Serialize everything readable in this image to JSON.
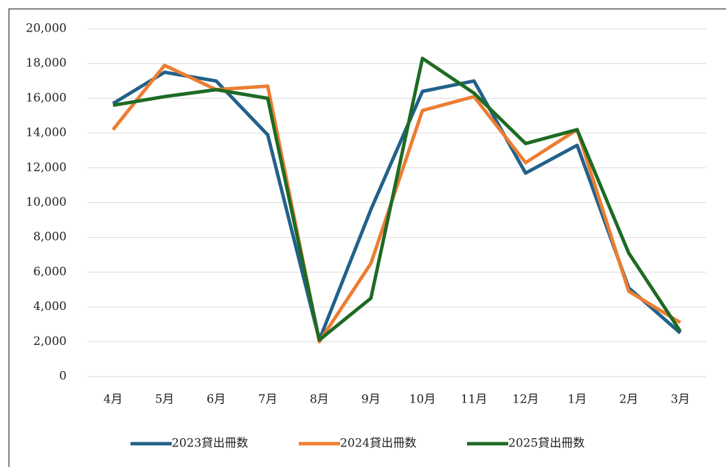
{
  "chart_data": {
    "type": "line",
    "categories": [
      "4月",
      "5月",
      "6月",
      "7月",
      "8月",
      "9月",
      "10月",
      "11月",
      "12月",
      "1月",
      "2月",
      "3月"
    ],
    "series": [
      {
        "name": "2023貸出冊数",
        "color": "#22618a",
        "values": [
          15700,
          17500,
          17000,
          13900,
          2100,
          9600,
          16400,
          17000,
          11700,
          13300,
          5100,
          2500
        ]
      },
      {
        "name": "2024貸出冊数",
        "color": "#ed7d31",
        "values": [
          14200,
          17900,
          16500,
          16700,
          2000,
          6500,
          15300,
          16100,
          12300,
          14200,
          4900,
          3100
        ]
      },
      {
        "name": "2025貸出冊数",
        "color": "#1e6b24",
        "values": [
          15600,
          16100,
          16500,
          16000,
          2100,
          4500,
          18300,
          16300,
          13400,
          14200,
          7100,
          2600
        ]
      }
    ],
    "ylim": [
      0,
      20000
    ],
    "yticks": [
      0,
      {
        "value": 2000,
        "label": "2,000"
      },
      {
        "value": 4000,
        "label": "4,000"
      },
      {
        "value": 6000,
        "label": "6,000"
      },
      {
        "value": 8000,
        "label": "8,000"
      },
      {
        "value": 10000,
        "label": "10,000"
      },
      {
        "value": 12000,
        "label": "12,000"
      },
      {
        "value": 14000,
        "label": "14,000"
      },
      {
        "value": 16000,
        "label": "16,000"
      },
      {
        "value": 18000,
        "label": "18,000"
      },
      {
        "value": 20000,
        "label": "20,000"
      }
    ],
    "grid": true,
    "legend": "bottom"
  }
}
